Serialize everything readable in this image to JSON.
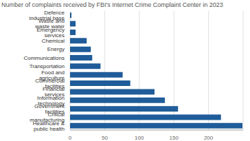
{
  "chart_data": {
    "type": "bar",
    "orientation": "horizontal",
    "title": "Number of complaints received by FBI's Internet Crime Complaint Center in 2023",
    "categories": [
      "Defence industrial base",
      "Waste and waste water",
      "Emergency services",
      "Chemical",
      "Energy",
      "Communications",
      "Transportation",
      "Food and agriculture",
      "Commercial facilities",
      "Financial services",
      "Information technology",
      "Government facilities",
      "Critical manufacturing",
      "Healthcare & public health"
    ],
    "values": [
      2,
      8,
      8,
      24,
      30,
      32,
      44,
      76,
      87,
      122,
      137,
      156,
      218,
      249
    ],
    "color": "#1f5c99",
    "xlim": [
      0,
      250
    ],
    "xticks": [
      0,
      50,
      100,
      150,
      200
    ],
    "grid": true
  }
}
